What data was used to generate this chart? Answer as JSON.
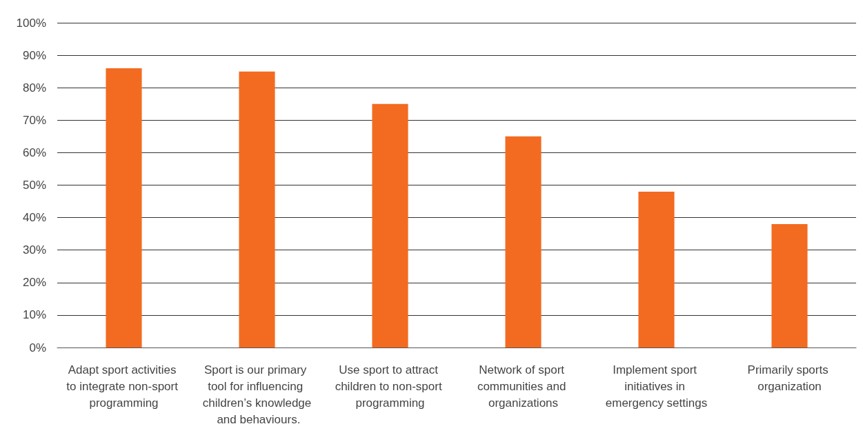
{
  "chart_data": {
    "type": "bar",
    "categories": [
      "Adapt sport activities to integrate non-sport programming",
      "Sport is our primary tool for influencing children’s knowledge and behaviours.",
      "Use sport to attract children to non-sport programming",
      "Network of sport communities and organizations",
      "Implement sport initiatives in emergency settings",
      "Primarily sports organization"
    ],
    "values": [
      86,
      85,
      75,
      65,
      48,
      38
    ],
    "color": "#f26b21",
    "ylim": [
      0,
      100
    ],
    "yticks": [
      {
        "value": 0,
        "label": "0%"
      },
      {
        "value": 10,
        "label": "10%"
      },
      {
        "value": 20,
        "label": "20%"
      },
      {
        "value": 30,
        "label": "30%"
      },
      {
        "value": 40,
        "label": "40%"
      },
      {
        "value": 50,
        "label": "50%"
      },
      {
        "value": 60,
        "label": "60%"
      },
      {
        "value": 70,
        "label": "70%"
      },
      {
        "value": 80,
        "label": "80%"
      },
      {
        "value": 90,
        "label": "90%"
      },
      {
        "value": 100,
        "label": "100%"
      }
    ],
    "grid": "y"
  }
}
